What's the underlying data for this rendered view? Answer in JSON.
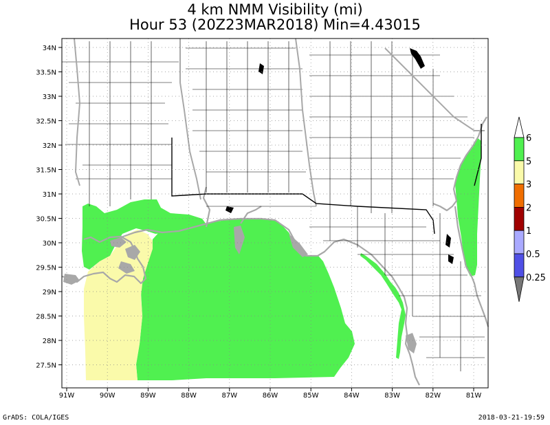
{
  "title": {
    "line1": "4 km  NMM Visibility (mi)",
    "line2": "Hour 53 (20Z23MAR2018) Min=4.43015"
  },
  "footer": {
    "left": "GrADS: COLA/IGES",
    "right": "2018-03-21-19:59"
  },
  "map": {
    "lat_labels": [
      "34N",
      "33.5N",
      "33N",
      "32.5N",
      "32N",
      "31.5N",
      "31N",
      "30.5N",
      "30N",
      "29.5N",
      "29N",
      "28.5N",
      "28N",
      "27.5N"
    ],
    "lon_labels": [
      "91W",
      "90W",
      "89W",
      "88W",
      "87W",
      "86W",
      "85W",
      "84W",
      "83W",
      "82W",
      "81W"
    ]
  },
  "legend": {
    "labels": [
      "6",
      "5",
      "3",
      "2",
      "1",
      "0.5",
      "0.25"
    ],
    "colors": [
      "#ffffff",
      "#50f050",
      "#fafaaa",
      "#f06e00",
      "#a00000",
      "#aaaaff",
      "#5050e6",
      "#777777"
    ],
    "land_color": "#b4b4b4"
  }
}
